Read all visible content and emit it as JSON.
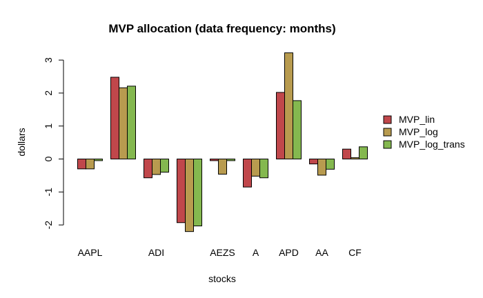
{
  "chart_data": {
    "type": "bar",
    "title": "MVP allocation (data frequency: months)",
    "xlabel": "stocks",
    "ylabel": "dollars",
    "ylim": [
      -2.2,
      3.2
    ],
    "yticks": [
      -2,
      -1,
      0,
      1,
      2,
      3
    ],
    "ytick_labels": [
      "-2",
      "-1",
      "0",
      "1",
      "2",
      "3"
    ],
    "categories": [
      "AAPL",
      "",
      "ADI",
      "",
      "AEZS",
      "A",
      "APD",
      "AA",
      "CF"
    ],
    "category_labels_shown": [
      "AAPL",
      "ADI",
      "AEZS",
      "A",
      "APD",
      "AA",
      "CF"
    ],
    "series": [
      {
        "name": "MVP_lin",
        "color": "#c0474b",
        "values": [
          -0.3,
          2.48,
          -0.57,
          -1.93,
          -0.05,
          -0.85,
          2.02,
          -0.15,
          0.3
        ]
      },
      {
        "name": "MVP_log",
        "color": "#b89b4f",
        "values": [
          -0.3,
          2.16,
          -0.47,
          -2.2,
          -0.46,
          -0.52,
          3.22,
          -0.49,
          0.04
        ]
      },
      {
        "name": "MVP_log_trans",
        "color": "#84b84f",
        "values": [
          -0.05,
          2.21,
          -0.4,
          -2.03,
          -0.05,
          -0.57,
          1.77,
          -0.31,
          0.37
        ]
      }
    ],
    "legend": {
      "position": "right"
    },
    "grid": false
  }
}
